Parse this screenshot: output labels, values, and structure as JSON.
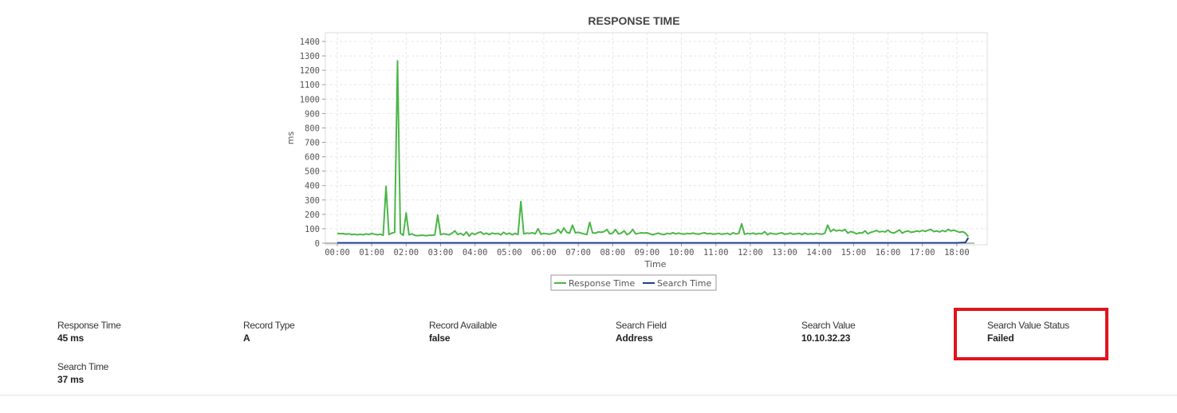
{
  "chart_data": {
    "type": "line",
    "title": "RESPONSE TIME",
    "xlabel": "Time",
    "ylabel": "ms",
    "ylim": [
      0,
      1450
    ],
    "xlim": [
      "00:00",
      "18:30"
    ],
    "yticks": [
      0,
      100,
      200,
      300,
      400,
      500,
      600,
      700,
      800,
      900,
      1000,
      1100,
      1200,
      1300,
      1400
    ],
    "xticks": [
      "00:00",
      "01:00",
      "02:00",
      "03:00",
      "04:00",
      "05:00",
      "06:00",
      "07:00",
      "08:00",
      "09:00",
      "10:00",
      "11:00",
      "12:00",
      "13:00",
      "14:00",
      "15:00",
      "16:00",
      "17:00",
      "18:00"
    ],
    "grid": true,
    "legend": "bottom-center",
    "series": [
      {
        "name": "Response Time",
        "color": "#4cb648",
        "points": [
          [
            "00:00",
            68
          ],
          [
            "00:05",
            66
          ],
          [
            "00:10",
            67
          ],
          [
            "00:15",
            62
          ],
          [
            "00:20",
            65
          ],
          [
            "00:25",
            60
          ],
          [
            "00:30",
            62
          ],
          [
            "00:35",
            58
          ],
          [
            "00:40",
            62
          ],
          [
            "00:45",
            58
          ],
          [
            "00:50",
            65
          ],
          [
            "00:55",
            60
          ],
          [
            "01:00",
            68
          ],
          [
            "01:05",
            62
          ],
          [
            "01:10",
            58
          ],
          [
            "01:15",
            62
          ],
          [
            "01:20",
            55
          ],
          [
            "01:25",
            395
          ],
          [
            "01:30",
            60
          ],
          [
            "01:35",
            70
          ],
          [
            "01:40",
            75
          ],
          [
            "01:45",
            1265
          ],
          [
            "01:50",
            70
          ],
          [
            "01:55",
            55
          ],
          [
            "02:00",
            210
          ],
          [
            "02:05",
            58
          ],
          [
            "02:10",
            65
          ],
          [
            "02:15",
            55
          ],
          [
            "02:20",
            52
          ],
          [
            "02:25",
            55
          ],
          [
            "02:30",
            55
          ],
          [
            "02:35",
            52
          ],
          [
            "02:40",
            55
          ],
          [
            "02:45",
            55
          ],
          [
            "02:50",
            58
          ],
          [
            "02:55",
            195
          ],
          [
            "03:00",
            60
          ],
          [
            "03:05",
            65
          ],
          [
            "03:10",
            62
          ],
          [
            "03:15",
            58
          ],
          [
            "03:20",
            70
          ],
          [
            "03:25",
            85
          ],
          [
            "03:30",
            60
          ],
          [
            "03:35",
            68
          ],
          [
            "03:40",
            55
          ],
          [
            "03:45",
            78
          ],
          [
            "03:50",
            50
          ],
          [
            "03:55",
            70
          ],
          [
            "04:00",
            60
          ],
          [
            "04:05",
            72
          ],
          [
            "04:10",
            78
          ],
          [
            "04:15",
            62
          ],
          [
            "04:20",
            70
          ],
          [
            "04:25",
            60
          ],
          [
            "04:30",
            70
          ],
          [
            "04:35",
            65
          ],
          [
            "04:40",
            68
          ],
          [
            "04:45",
            58
          ],
          [
            "04:50",
            75
          ],
          [
            "04:55",
            62
          ],
          [
            "05:00",
            70
          ],
          [
            "05:05",
            58
          ],
          [
            "05:10",
            68
          ],
          [
            "05:15",
            60
          ],
          [
            "05:20",
            290
          ],
          [
            "05:25",
            65
          ],
          [
            "05:30",
            70
          ],
          [
            "05:35",
            68
          ],
          [
            "05:40",
            72
          ],
          [
            "05:45",
            65
          ],
          [
            "05:50",
            100
          ],
          [
            "05:55",
            62
          ],
          [
            "06:00",
            68
          ],
          [
            "06:05",
            65
          ],
          [
            "06:10",
            62
          ],
          [
            "06:15",
            68
          ],
          [
            "06:20",
            72
          ],
          [
            "06:25",
            95
          ],
          [
            "06:30",
            70
          ],
          [
            "06:35",
            105
          ],
          [
            "06:40",
            75
          ],
          [
            "06:45",
            70
          ],
          [
            "06:50",
            125
          ],
          [
            "06:55",
            72
          ],
          [
            "07:00",
            75
          ],
          [
            "07:05",
            70
          ],
          [
            "07:10",
            65
          ],
          [
            "07:15",
            60
          ],
          [
            "07:20",
            145
          ],
          [
            "07:25",
            72
          ],
          [
            "07:30",
            70
          ],
          [
            "07:35",
            78
          ],
          [
            "07:40",
            75
          ],
          [
            "07:45",
            80
          ],
          [
            "07:50",
            95
          ],
          [
            "07:55",
            65
          ],
          [
            "08:00",
            70
          ],
          [
            "08:05",
            95
          ],
          [
            "08:10",
            65
          ],
          [
            "08:15",
            70
          ],
          [
            "08:20",
            85
          ],
          [
            "08:25",
            60
          ],
          [
            "08:30",
            70
          ],
          [
            "08:35",
            95
          ],
          [
            "08:40",
            65
          ],
          [
            "08:45",
            68
          ],
          [
            "08:50",
            72
          ],
          [
            "08:55",
            70
          ],
          [
            "09:00",
            72
          ],
          [
            "09:05",
            65
          ],
          [
            "09:10",
            58
          ],
          [
            "09:15",
            65
          ],
          [
            "09:20",
            70
          ],
          [
            "09:25",
            62
          ],
          [
            "09:30",
            60
          ],
          [
            "09:35",
            68
          ],
          [
            "09:40",
            65
          ],
          [
            "09:45",
            72
          ],
          [
            "09:50",
            65
          ],
          [
            "09:55",
            70
          ],
          [
            "10:00",
            65
          ],
          [
            "10:05",
            62
          ],
          [
            "10:10",
            68
          ],
          [
            "10:15",
            65
          ],
          [
            "10:20",
            70
          ],
          [
            "10:25",
            65
          ],
          [
            "10:30",
            62
          ],
          [
            "10:35",
            68
          ],
          [
            "10:40",
            72
          ],
          [
            "10:45",
            65
          ],
          [
            "10:50",
            68
          ],
          [
            "10:55",
            62
          ],
          [
            "11:00",
            65
          ],
          [
            "11:05",
            68
          ],
          [
            "11:10",
            62
          ],
          [
            "11:15",
            65
          ],
          [
            "11:20",
            68
          ],
          [
            "11:25",
            60
          ],
          [
            "11:30",
            72
          ],
          [
            "11:35",
            65
          ],
          [
            "11:40",
            68
          ],
          [
            "11:45",
            135
          ],
          [
            "11:50",
            62
          ],
          [
            "11:55",
            68
          ],
          [
            "12:00",
            65
          ],
          [
            "12:05",
            70
          ],
          [
            "12:10",
            62
          ],
          [
            "12:15",
            68
          ],
          [
            "12:20",
            65
          ],
          [
            "12:25",
            80
          ],
          [
            "12:30",
            58
          ],
          [
            "12:35",
            70
          ],
          [
            "12:40",
            65
          ],
          [
            "12:45",
            62
          ],
          [
            "12:50",
            68
          ],
          [
            "12:55",
            72
          ],
          [
            "13:00",
            62
          ],
          [
            "13:05",
            65
          ],
          [
            "13:10",
            70
          ],
          [
            "13:15",
            62
          ],
          [
            "13:20",
            65
          ],
          [
            "13:25",
            68
          ],
          [
            "13:30",
            60
          ],
          [
            "13:35",
            70
          ],
          [
            "13:40",
            62
          ],
          [
            "13:45",
            65
          ],
          [
            "13:50",
            62
          ],
          [
            "13:55",
            68
          ],
          [
            "14:00",
            65
          ],
          [
            "14:05",
            62
          ],
          [
            "14:10",
            70
          ],
          [
            "14:15",
            125
          ],
          [
            "14:20",
            80
          ],
          [
            "14:25",
            95
          ],
          [
            "14:30",
            85
          ],
          [
            "14:35",
            90
          ],
          [
            "14:40",
            85
          ],
          [
            "14:45",
            95
          ],
          [
            "14:50",
            70
          ],
          [
            "14:55",
            80
          ],
          [
            "15:00",
            75
          ],
          [
            "15:05",
            65
          ],
          [
            "15:10",
            72
          ],
          [
            "15:15",
            70
          ],
          [
            "15:20",
            85
          ],
          [
            "15:25",
            65
          ],
          [
            "15:30",
            75
          ],
          [
            "15:35",
            80
          ],
          [
            "15:40",
            88
          ],
          [
            "15:45",
            78
          ],
          [
            "15:50",
            82
          ],
          [
            "15:55",
            78
          ],
          [
            "16:00",
            90
          ],
          [
            "16:05",
            75
          ],
          [
            "16:10",
            70
          ],
          [
            "16:15",
            80
          ],
          [
            "16:20",
            92
          ],
          [
            "16:25",
            70
          ],
          [
            "16:30",
            80
          ],
          [
            "16:35",
            85
          ],
          [
            "16:40",
            75
          ],
          [
            "16:45",
            78
          ],
          [
            "16:50",
            85
          ],
          [
            "16:55",
            80
          ],
          [
            "17:00",
            88
          ],
          [
            "17:05",
            82
          ],
          [
            "17:10",
            90
          ],
          [
            "17:15",
            95
          ],
          [
            "17:20",
            80
          ],
          [
            "17:25",
            85
          ],
          [
            "17:30",
            78
          ],
          [
            "17:35",
            88
          ],
          [
            "17:40",
            80
          ],
          [
            "17:45",
            95
          ],
          [
            "17:50",
            85
          ],
          [
            "17:55",
            90
          ],
          [
            "18:00",
            82
          ],
          [
            "18:05",
            75
          ],
          [
            "18:10",
            80
          ],
          [
            "18:15",
            70
          ],
          [
            "18:20",
            45
          ]
        ]
      },
      {
        "name": "Search Time",
        "color": "#1f3f8f",
        "points": [
          [
            "00:00",
            2
          ],
          [
            "06:00",
            2
          ],
          [
            "12:00",
            2
          ],
          [
            "18:00",
            2
          ],
          [
            "18:15",
            5
          ],
          [
            "18:20",
            37
          ]
        ]
      }
    ]
  },
  "metrics_row1": [
    {
      "label": "Response Time",
      "value": "45 ms"
    },
    {
      "label": "Record Type",
      "value": "A"
    },
    {
      "label": "Record Available",
      "value": "false"
    },
    {
      "label": "Search Field",
      "value": "Address"
    },
    {
      "label": "Search Value",
      "value": "10.10.32.23"
    },
    {
      "label": "Search Value Status",
      "value": "Failed"
    }
  ],
  "metrics_row2": [
    {
      "label": "Search Time",
      "value": "37 ms"
    }
  ],
  "colors": {
    "highlight": "#e0141e",
    "grid": "#e6e6e6"
  }
}
